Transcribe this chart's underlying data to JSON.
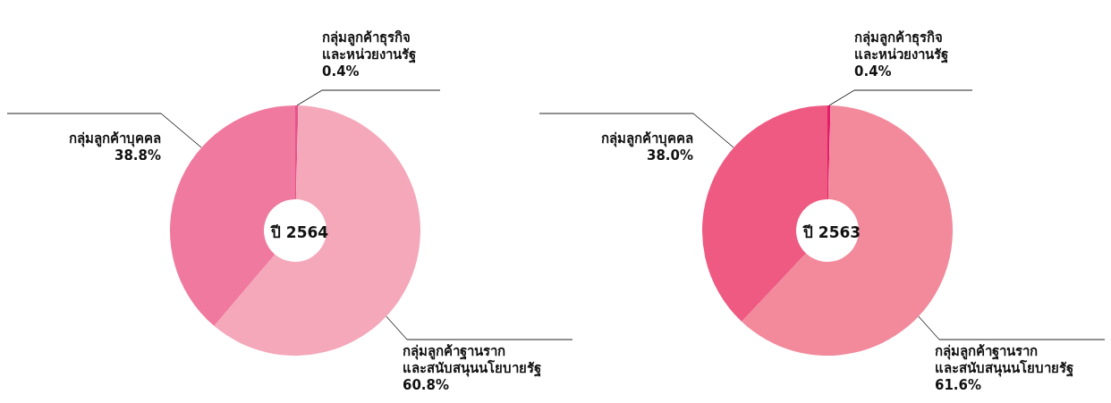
{
  "chart_data": [
    {
      "type": "donut",
      "title": "ปี 2564",
      "categories": [
        "กลุ่มลูกค้าธุรกิจ\nและหน่วยงานรัฐ",
        "กลุ่มลูกค้าฐานราก\nและสนับสนุนนโยบายรัฐ",
        "กลุ่มลูกค้าบุคคล"
      ],
      "values": [
        0.4,
        60.8,
        38.8
      ],
      "value_labels": [
        "0.4%",
        "60.8%",
        "38.8%"
      ],
      "colors": [
        "#e6528a",
        "#f4a8ba",
        "#f07a9f"
      ]
    },
    {
      "type": "donut",
      "title": "ปี 2563",
      "categories": [
        "กลุ่มลูกค้าธุรกิจ\nและหน่วยงานรัฐ",
        "กลุ่มลูกค้าฐานราก\nและสนับสนุนนโยบายรัฐ",
        "กลุ่มลูกค้าบุคคล"
      ],
      "values": [
        0.4,
        61.6,
        38.0
      ],
      "value_labels": [
        "0.4%",
        "61.6%",
        "38.0%"
      ],
      "colors": [
        "#e01f6c",
        "#f28a9c",
        "#ee5a82"
      ]
    }
  ]
}
